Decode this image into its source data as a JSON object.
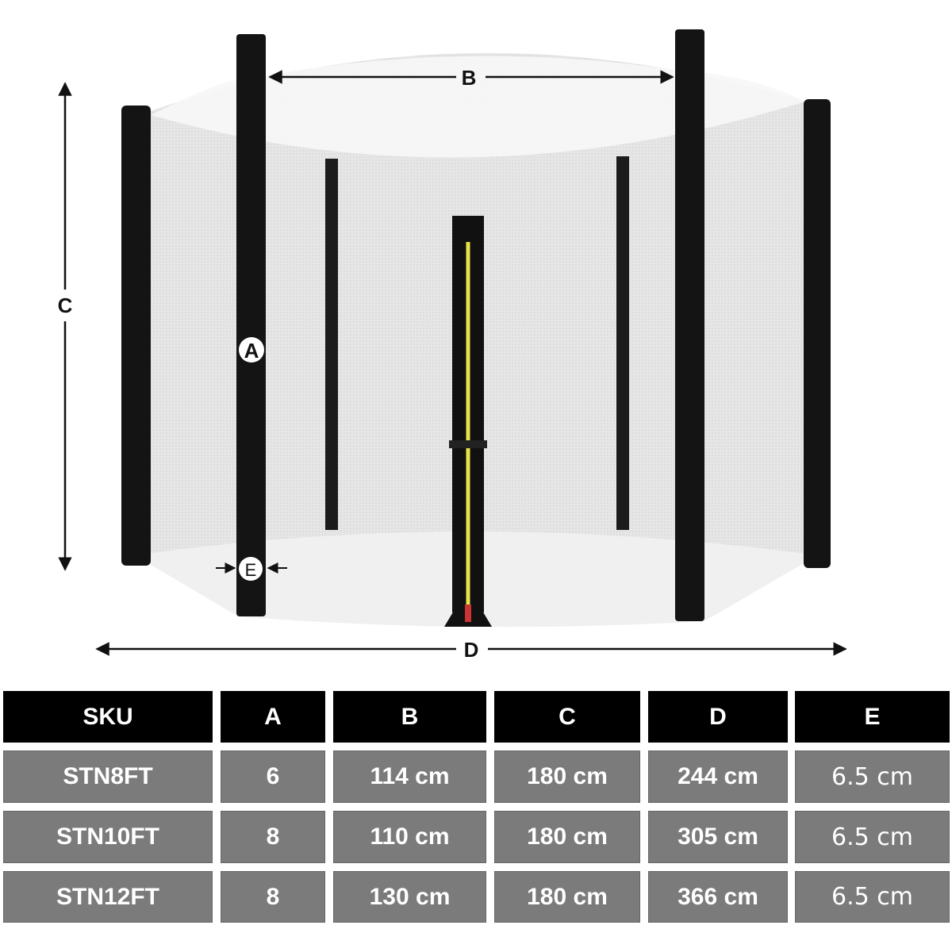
{
  "diagram": {
    "labels": {
      "a": "A",
      "b": "B",
      "c": "C",
      "d": "D",
      "e": "E"
    },
    "colors": {
      "post": "#141414",
      "net": "#e4e4e4",
      "zipper": "#e8e34a",
      "ground": "#f2f2f2"
    }
  },
  "table": {
    "headers": [
      "SKU",
      "A",
      "B",
      "C",
      "D",
      "E"
    ],
    "rows": [
      [
        "STN8FT",
        "6",
        "114 cm",
        "180 cm",
        "244 cm",
        "6.5 cm"
      ],
      [
        "STN10FT",
        "8",
        "110 cm",
        "180 cm",
        "305 cm",
        "6.5 cm"
      ],
      [
        "STN12FT",
        "8",
        "130 cm",
        "180 cm",
        "366 cm",
        "6.5 cm"
      ]
    ],
    "colors": {
      "header_bg": "#000000",
      "row_bg": "#7b7b7b",
      "text": "#ffffff"
    }
  }
}
